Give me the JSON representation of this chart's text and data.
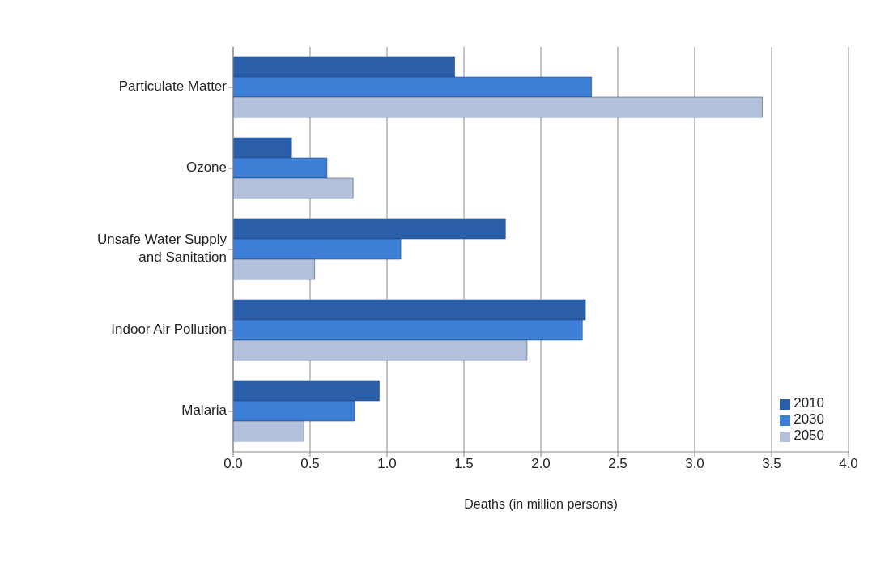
{
  "chart_data": {
    "type": "bar",
    "orientation": "horizontal",
    "xlabel": "Deaths (in million persons)",
    "categories": [
      "Particulate Matter",
      "Ozone",
      "Unsafe Water Supply and Sanitation",
      "Indoor Air Pollution",
      "Malaria"
    ],
    "series": [
      {
        "name": "2010",
        "color": "#2b5ea8",
        "values": [
          1.44,
          0.38,
          1.77,
          2.29,
          0.95
        ]
      },
      {
        "name": "2030",
        "color": "#3d7fd6",
        "values": [
          2.33,
          0.61,
          1.09,
          2.27,
          0.79
        ]
      },
      {
        "name": "2050",
        "color": "#b3c0d9",
        "values": [
          3.44,
          0.78,
          0.53,
          1.91,
          0.46
        ]
      }
    ],
    "xlim": [
      0,
      4
    ],
    "xticks": [
      {
        "value": 0,
        "label": "0.0"
      },
      {
        "value": 0.5,
        "label": "0.5"
      },
      {
        "value": 1,
        "label": "1.0"
      },
      {
        "value": 1.5,
        "label": "1.5"
      },
      {
        "value": 2,
        "label": "2.0"
      },
      {
        "value": 2.5,
        "label": "2.5"
      },
      {
        "value": 3,
        "label": "3.0"
      },
      {
        "value": 3.5,
        "label": "3.5"
      },
      {
        "value": 4,
        "label": "4.0"
      }
    ],
    "grid": "x",
    "legend": "bottom right"
  }
}
